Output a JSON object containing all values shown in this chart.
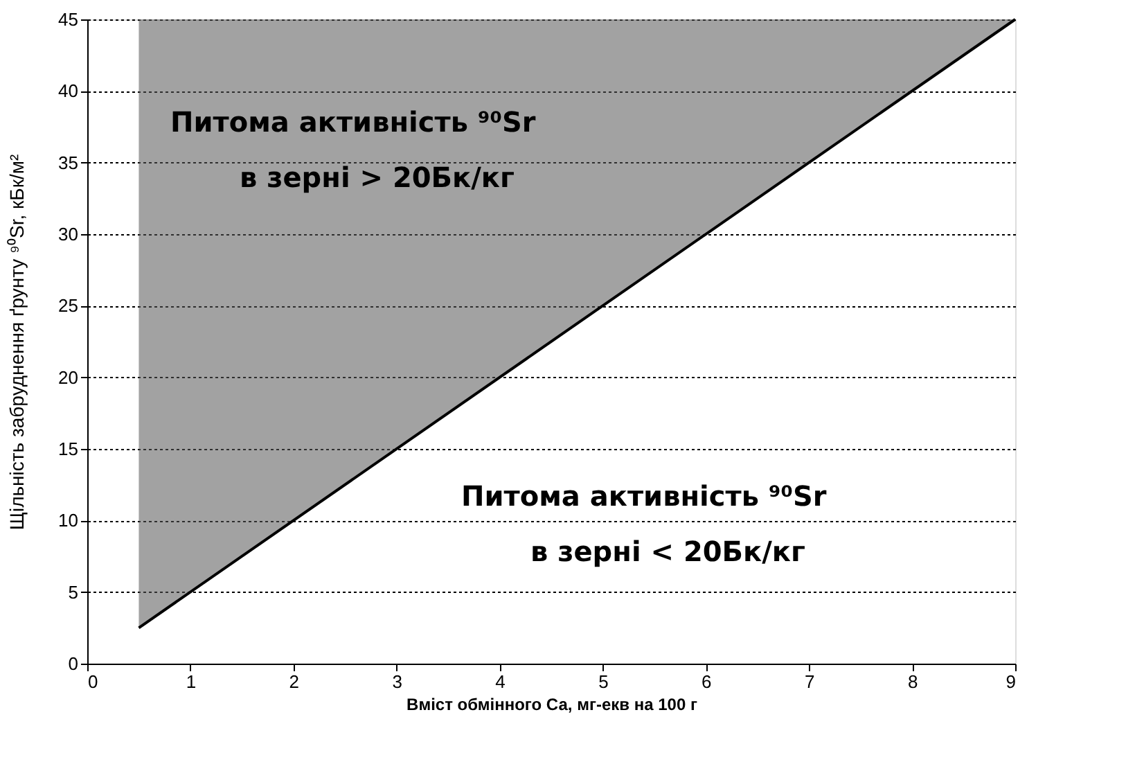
{
  "chart_data": {
    "type": "line",
    "xlabel": "Вміст обмінного Са, мг-екв на 100 г",
    "ylabel": "Щільність забруднення ґрунту ⁹⁰Sr, кБк/м²",
    "series": [
      {
        "color": "#000000",
        "x": [
          0.5,
          9
        ],
        "values": [
          2.5,
          45
        ],
        "lower": [
          2.5,
          45
        ],
        "upper": [
          45,
          45
        ]
      }
    ],
    "xlim": [
      0,
      9
    ],
    "xticks": [
      0,
      1,
      2,
      3,
      4,
      5,
      6,
      7,
      8,
      9
    ],
    "ylim": [
      0,
      45
    ],
    "yticks": [
      0,
      5,
      10,
      15,
      20,
      25,
      30,
      35,
      40,
      45
    ],
    "grid": "y",
    "line_style": "solid",
    "marker": "none",
    "annotations": [
      "Питома активність ⁹⁰Sr",
      "в зерні > 20Бк/кг",
      "Питома активність ⁹⁰Sr",
      "в зерні < 20Бк/кг"
    ]
  }
}
